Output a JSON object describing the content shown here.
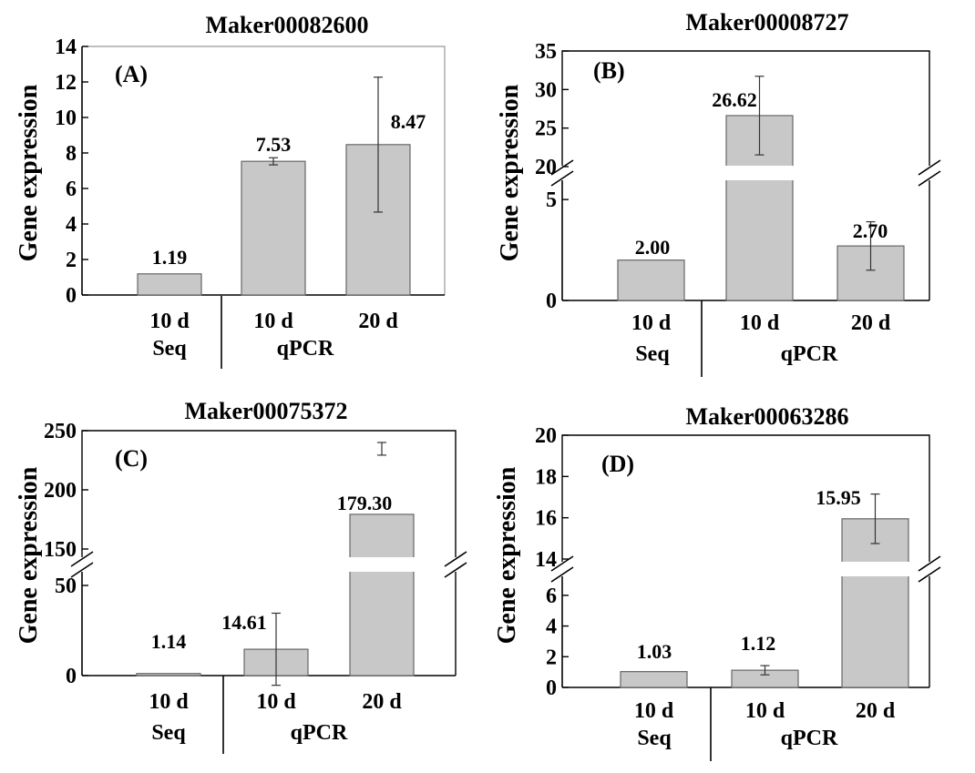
{
  "chart_data": [
    {
      "type": "bar",
      "title": "Maker00082600",
      "panel_label": "(A)",
      "ylabel": "Gene expression",
      "categories": [
        "10 d",
        "10 d",
        "20 d"
      ],
      "groups": [
        "Seq",
        "qPCR"
      ],
      "values": [
        1.19,
        7.53,
        8.47
      ],
      "value_labels": [
        "1.19",
        "7.53",
        "8.47"
      ],
      "error": [
        0,
        0.2,
        3.8
      ],
      "ylim": [
        0,
        14
      ],
      "yticks": [
        "0",
        "2",
        "4",
        "6",
        "8",
        "10",
        "12",
        "14"
      ],
      "axis_break": false
    },
    {
      "type": "bar",
      "title": "Maker00008727",
      "panel_label": "(B)",
      "ylabel": "Gene expression",
      "categories": [
        "10 d",
        "10 d",
        "20 d"
      ],
      "groups": [
        "Seq",
        "qPCR"
      ],
      "values": [
        2.0,
        26.62,
        2.7
      ],
      "value_labels": [
        "2.00",
        "26.62",
        "2.70"
      ],
      "error": [
        0,
        5.1,
        1.2
      ],
      "ylim": [
        0,
        35
      ],
      "yticks_lower": [
        "0",
        "5"
      ],
      "yticks_upper": [
        "20",
        "25",
        "30",
        "35"
      ],
      "axis_break": [
        6,
        20
      ]
    },
    {
      "type": "bar",
      "title": "Maker00075372",
      "panel_label": "(C)",
      "ylabel": "Gene expression",
      "categories": [
        "10 d",
        "10 d",
        "20 d"
      ],
      "groups": [
        "Seq",
        "qPCR"
      ],
      "values": [
        1.14,
        14.61,
        179.3
      ],
      "value_labels": [
        "1.14",
        "14.61",
        "179.30"
      ],
      "error": [
        0,
        20,
        50
      ],
      "ylim": [
        0,
        250
      ],
      "yticks_lower": [
        "0",
        "50"
      ],
      "yticks_upper": [
        "150",
        "200",
        "250"
      ],
      "axis_break": [
        50,
        150
      ]
    },
    {
      "type": "bar",
      "title": "Maker00063286",
      "panel_label": "(D)",
      "ylabel": "Gene expression",
      "categories": [
        "10 d",
        "10 d",
        "20 d"
      ],
      "groups": [
        "Seq",
        "qPCR"
      ],
      "values": [
        1.03,
        1.12,
        15.95
      ],
      "value_labels": [
        "1.03",
        "1.12",
        "15.95"
      ],
      "error": [
        0,
        0.3,
        1.2
      ],
      "ylim": [
        0,
        20
      ],
      "yticks_lower": [
        "0",
        "2",
        "4",
        "6"
      ],
      "yticks_upper": [
        "14",
        "16",
        "18",
        "20"
      ],
      "axis_break": [
        7,
        14
      ]
    }
  ]
}
